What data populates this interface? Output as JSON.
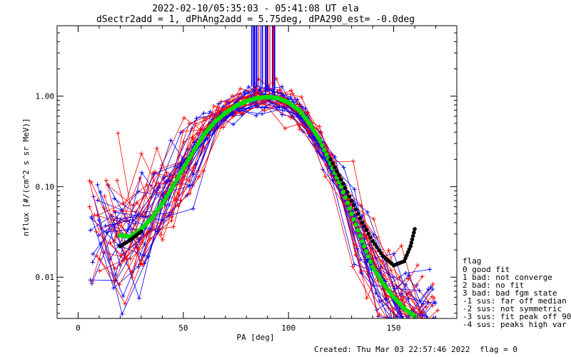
{
  "chart_data": {
    "type": "line",
    "title": "2022-02-10/05:35:03 - 05:41:08 UT ela",
    "subtitle": "dSectr2add = 1, dPhAng2add = 5.75deg, dPA290_est=  -0.0deg",
    "xlabel": "PA [deg]",
    "ylabel": "nflux [#/(cm^2 s sr MeV)]",
    "xlim": [
      -10,
      180
    ],
    "ylim": [
      0.0035,
      6.0
    ],
    "yscale": "log",
    "x_ticks": [
      0,
      50,
      100,
      150
    ],
    "x_tick_labels": [
      "0",
      "50",
      "100",
      "150"
    ],
    "y_ticks": [
      0.01,
      0.1,
      1.0
    ],
    "y_tick_labels": [
      "0.01",
      "0.10",
      "1.00"
    ],
    "grid": false,
    "legend_position": "right",
    "series": [
      {
        "color": "#00dd00",
        "x": [
          20,
          25,
          30,
          35,
          40,
          45,
          50,
          55,
          60,
          65,
          70,
          75,
          80,
          85,
          90,
          95,
          100,
          105,
          110,
          115,
          120,
          125,
          130,
          135,
          140,
          145,
          150,
          155,
          160
        ],
        "y": [
          0.029,
          0.028,
          0.034,
          0.045,
          0.065,
          0.1,
          0.16,
          0.25,
          0.38,
          0.52,
          0.65,
          0.78,
          0.88,
          0.95,
          0.98,
          0.95,
          0.85,
          0.7,
          0.5,
          0.32,
          0.18,
          0.1,
          0.05,
          0.025,
          0.013,
          0.0085,
          0.006,
          0.0045,
          0.0037
        ]
      },
      {
        "color": "#000000",
        "x": [
          20,
          25,
          30,
          120,
          125,
          130,
          135,
          140,
          145,
          150,
          155,
          158,
          160
        ],
        "y": [
          0.022,
          0.026,
          0.032,
          0.2,
          0.12,
          0.07,
          0.04,
          0.025,
          0.017,
          0.0135,
          0.015,
          0.022,
          0.034
        ]
      }
    ]
  },
  "legend": {
    "title": "flag",
    "entries": [
      " 0 good fit",
      " 1 bad: not converge",
      " 2 bad: no fit",
      " 3 bad: bad fgm state",
      "-1 sus: far off median",
      "-2 sus: not symmetric",
      "-3 sus: fit peak off 90",
      "-4 sus: peaks high var"
    ]
  },
  "footer": {
    "created": "Created: Thu Mar 03 22:57:46 2022",
    "flag": "flag = 0"
  },
  "colors": {
    "blue": "#0000ff",
    "red": "#ff0000",
    "green": "#00dd00",
    "black": "#000000"
  }
}
